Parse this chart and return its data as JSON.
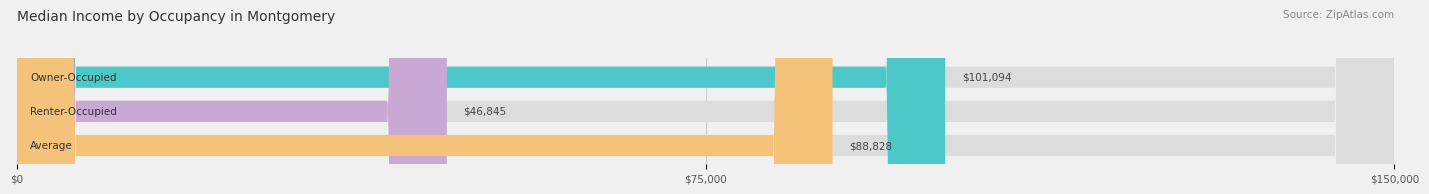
{
  "title": "Median Income by Occupancy in Montgomery",
  "source": "Source: ZipAtlas.com",
  "categories": [
    "Owner-Occupied",
    "Renter-Occupied",
    "Average"
  ],
  "values": [
    101094,
    46845,
    88828
  ],
  "bar_colors": [
    "#4dc8c8",
    "#c9a8d4",
    "#f5c27a"
  ],
  "value_labels": [
    "$101,094",
    "$46,845",
    "$88,828"
  ],
  "xlim": [
    0,
    150000
  ],
  "xticks": [
    0,
    75000,
    150000
  ],
  "xtick_labels": [
    "$0",
    "$75,000",
    "$150,000"
  ],
  "title_fontsize": 10,
  "source_fontsize": 7.5,
  "label_fontsize": 7.5,
  "value_fontsize": 7.5,
  "background_color": "#f0f0f0"
}
